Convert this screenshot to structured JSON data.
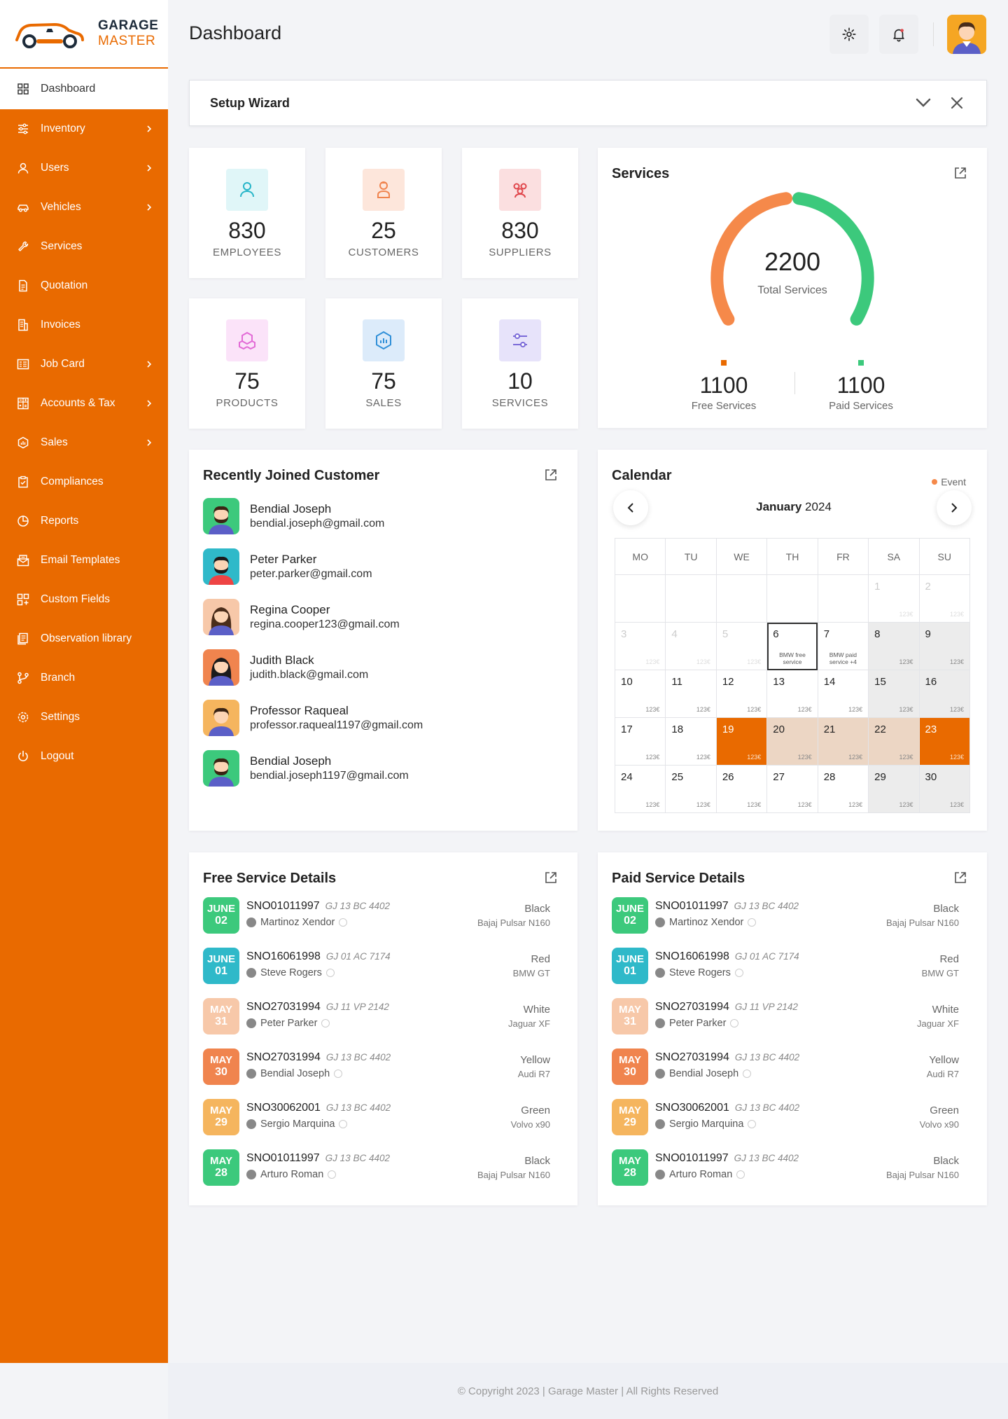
{
  "brand": {
    "line1": "GARAGE",
    "line2": "MASTER"
  },
  "header": {
    "title": "Dashboard"
  },
  "sidebar": {
    "active": {
      "label": "Dashboard",
      "icon": "grid-icon"
    },
    "items": [
      {
        "label": "Inventory",
        "icon": "sliders-icon",
        "chevron": true
      },
      {
        "label": "Users",
        "icon": "user-icon",
        "chevron": true
      },
      {
        "label": "Vehicles",
        "icon": "car-icon",
        "chevron": true
      },
      {
        "label": "Services",
        "icon": "wrench-icon",
        "chevron": false
      },
      {
        "label": "Quotation",
        "icon": "document-icon",
        "chevron": false
      },
      {
        "label": "Invoices",
        "icon": "invoice-icon",
        "chevron": false
      },
      {
        "label": "Job Card",
        "icon": "card-icon",
        "chevron": true
      },
      {
        "label": "Accounts & Tax",
        "icon": "calculator-icon",
        "chevron": true
      },
      {
        "label": "Sales",
        "icon": "sales-icon",
        "chevron": true
      },
      {
        "label": "Compliances",
        "icon": "clipboard-icon",
        "chevron": false
      },
      {
        "label": "Reports",
        "icon": "pie-icon",
        "chevron": false
      },
      {
        "label": "Email Templates",
        "icon": "mail-icon",
        "chevron": false
      },
      {
        "label": "Custom Fields",
        "icon": "fields-icon",
        "chevron": false
      },
      {
        "label": "Observation library",
        "icon": "library-icon",
        "chevron": false
      },
      {
        "label": "Branch",
        "icon": "branch-icon",
        "chevron": false
      },
      {
        "label": "Settings",
        "icon": "gear-icon",
        "chevron": false
      },
      {
        "label": "Logout",
        "icon": "power-icon",
        "chevron": false
      }
    ]
  },
  "setup": {
    "title": "Setup Wizard"
  },
  "stats": [
    {
      "value": "830",
      "label": "EMPLOYEES",
      "color": "#26b5c8",
      "bg": "#e0f6f8"
    },
    {
      "value": "25",
      "label": "CUSTOMERS",
      "color": "#f0844e",
      "bg": "#fde6db"
    },
    {
      "value": "830",
      "label": "SUPPLIERS",
      "color": "#e0474c",
      "bg": "#fbdfe0"
    },
    {
      "value": "75",
      "label": "PRODUCTS",
      "color": "#e26ad6",
      "bg": "#fbe3f9"
    },
    {
      "value": "75",
      "label": "SALES",
      "color": "#2f8fd8",
      "bg": "#dcebfa"
    },
    {
      "value": "10",
      "label": "SERVICES",
      "color": "#7a6ad8",
      "bg": "#e7e3fa"
    }
  ],
  "services": {
    "title": "Services",
    "total": "2200",
    "total_label": "Total Services",
    "free": {
      "value": "1100",
      "label": "Free Services",
      "color": "#f5894a"
    },
    "paid": {
      "value": "1100",
      "label": "Paid Services",
      "color": "#3cc97c"
    }
  },
  "customers": {
    "title": "Recently Joined Customer",
    "list": [
      {
        "name": "Bendial Joseph",
        "email": "bendial.joseph@gmail.com",
        "bg": "#3cc97c"
      },
      {
        "name": "Peter Parker",
        "email": "peter.parker@gmail.com",
        "bg": "#2fb9c9"
      },
      {
        "name": "Regina Cooper",
        "email": "regina.cooper123@gmail.com",
        "bg": "#f7c8a9"
      },
      {
        "name": "Judith Black",
        "email": "judith.black@gmail.com",
        "bg": "#f0844e"
      },
      {
        "name": "Professor Raqueal",
        "email": "professor.raqueal1197@gmail.com",
        "bg": "#f5b55e"
      },
      {
        "name": "Bendial Joseph",
        "email": "bendial.joseph1197@gmail.com",
        "bg": "#3cc97c"
      }
    ]
  },
  "calendar": {
    "title": "Calendar",
    "legend": "Event",
    "month": "January",
    "year": "2024",
    "weekdays": [
      "MO",
      "TU",
      "WE",
      "TH",
      "FR",
      "SA",
      "SU"
    ],
    "price": "123€",
    "events": {
      "6": "BMW free service",
      "7": "BMW paid service +4"
    }
  },
  "free_services": {
    "title": "Free Service Details",
    "rows": [
      {
        "month": "JUNE",
        "day": "02",
        "no": "SNO01011997",
        "plate": "GJ 13 BC 4402",
        "person": "Martinoz Xendor",
        "color": "Black",
        "model": "Bajaj Pulsar N160",
        "bg": "#3cc97c"
      },
      {
        "month": "JUNE",
        "day": "01",
        "no": "SNO16061998",
        "plate": "GJ 01 AC 7174",
        "person": "Steve Rogers",
        "color": "Red",
        "model": "BMW GT",
        "bg": "#2fb9c9"
      },
      {
        "month": "MAY",
        "day": "31",
        "no": "SNO27031994",
        "plate": "GJ 11 VP 2142",
        "person": "Peter Parker",
        "color": "White",
        "model": "Jaguar XF",
        "bg": "#f7c8a9"
      },
      {
        "month": "MAY",
        "day": "30",
        "no": "SNO27031994",
        "plate": "GJ 13 BC 4402",
        "person": "Bendial Joseph",
        "color": "Yellow",
        "model": "Audi R7",
        "bg": "#f0844e"
      },
      {
        "month": "MAY",
        "day": "29",
        "no": "SNO30062001",
        "plate": "GJ 13 BC 4402",
        "person": "Sergio Marquina",
        "color": "Green",
        "model": "Volvo x90",
        "bg": "#f5b55e"
      },
      {
        "month": "MAY",
        "day": "28",
        "no": "SNO01011997",
        "plate": "GJ 13 BC 4402",
        "person": "Arturo Roman",
        "color": "Black",
        "model": "Bajaj Pulsar N160",
        "bg": "#3cc97c"
      }
    ]
  },
  "paid_services": {
    "title": "Paid Service Details",
    "rows": [
      {
        "month": "JUNE",
        "day": "02",
        "no": "SNO01011997",
        "plate": "GJ 13 BC 4402",
        "person": "Martinoz Xendor",
        "color": "Black",
        "model": "Bajaj Pulsar N160",
        "bg": "#3cc97c"
      },
      {
        "month": "JUNE",
        "day": "01",
        "no": "SNO16061998",
        "plate": "GJ 01 AC 7174",
        "person": "Steve Rogers",
        "color": "Red",
        "model": "BMW GT",
        "bg": "#2fb9c9"
      },
      {
        "month": "MAY",
        "day": "31",
        "no": "SNO27031994",
        "plate": "GJ 11 VP 2142",
        "person": "Peter Parker",
        "color": "White",
        "model": "Jaguar XF",
        "bg": "#f7c8a9"
      },
      {
        "month": "MAY",
        "day": "30",
        "no": "SNO27031994",
        "plate": "GJ 13 BC 4402",
        "person": "Bendial Joseph",
        "color": "Yellow",
        "model": "Audi R7",
        "bg": "#f0844e"
      },
      {
        "month": "MAY",
        "day": "29",
        "no": "SNO30062001",
        "plate": "GJ 13 BC 4402",
        "person": "Sergio Marquina",
        "color": "Green",
        "model": "Volvo x90",
        "bg": "#f5b55e"
      },
      {
        "month": "MAY",
        "day": "28",
        "no": "SNO01011997",
        "plate": "GJ 13 BC 4402",
        "person": "Arturo Roman",
        "color": "Black",
        "model": "Bajaj Pulsar N160",
        "bg": "#3cc97c"
      }
    ]
  },
  "footer": {
    "text": "© Copyright 2023 | Garage Master  | All Rights Reserved"
  },
  "colors": {
    "accent": "#e96a00"
  }
}
